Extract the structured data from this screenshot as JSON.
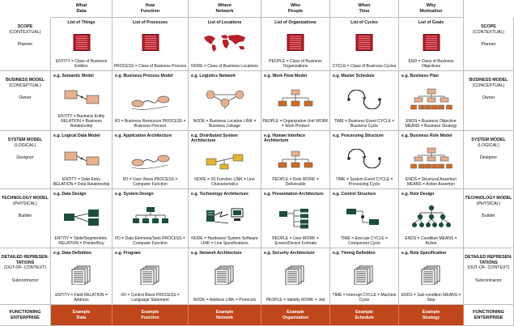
{
  "colors": {
    "accent_bottom": "#c0461b",
    "icon_red": "#b81f2a",
    "icon_green": "#1d4d40",
    "icon_peach": "#e9b08e",
    "icon_orange": "#d06a22",
    "icon_yellow": "#e6b432"
  },
  "columns": [
    {
      "line1": "What",
      "line2": "Data"
    },
    {
      "line1": "How",
      "line2": "Function"
    },
    {
      "line1": "Where",
      "line2": "Network"
    },
    {
      "line1": "Who",
      "line2": "People"
    },
    {
      "line1": "When",
      "line2": "Time"
    },
    {
      "line1": "Why",
      "line2": "Motivation"
    }
  ],
  "rows": [
    {
      "name": "SCOPE",
      "sub": "(CONTEXTUAL)",
      "role": "Planner"
    },
    {
      "name": "BUSINESS MODEL",
      "sub": "(CONCEPTUAL)",
      "role": "Owner"
    },
    {
      "name": "SYSTEM MODEL",
      "sub": "(LOGICAL)",
      "role": "Designer"
    },
    {
      "name": "TECHNOLOGY MODEL",
      "sub": "(PHYSICAL)",
      "role": "Builder"
    },
    {
      "name": "DETAILED REPRESEN- TATIONS",
      "sub": "(OUT-OF- CONTEXT)",
      "role": "Subcontractor"
    }
  ],
  "cells": [
    [
      {
        "title": "List of Things",
        "icon": "book-icon",
        "desc": "ENTITY = Class of Business Entities"
      },
      {
        "title": "List of Processes",
        "icon": "book-icon",
        "desc": "PROCESS = Class of Business Process"
      },
      {
        "title": "List of Locations",
        "icon": "world-map-icon",
        "desc": "NODE = Class of Business Locations"
      },
      {
        "title": "List of Organizations",
        "icon": "book-icon",
        "desc": "PEOPLE = Class of Business Organizations"
      },
      {
        "title": "List of Cycles",
        "icon": "book-icon",
        "desc": "CYCLE = Class of Business Cycles"
      },
      {
        "title": "List of Goals",
        "icon": "book-icon",
        "desc": "END = Class of Business Objectives"
      }
    ],
    [
      {
        "title": "e.g. Semantic Model",
        "icon": "entity-diagram-icon",
        "desc": "ENTITY = Business Entity RELATION = Business Relationship"
      },
      {
        "title": "e.g. Business Process Model",
        "icon": "process-flow-icon",
        "desc": "I/O = Business Resources PROCESS = Business Process"
      },
      {
        "title": "e.g. Logistics Network",
        "icon": "network-nodes-icon",
        "desc": "NODE = Business Location LINK = Business Linkage"
      },
      {
        "title": "e.g. Work Flow Model",
        "icon": "org-chart-icon",
        "desc": "PEOPLE = Organization Unit WORK = Work Product"
      },
      {
        "title": "e.g. Master Schedule",
        "icon": "cycle-icon",
        "desc": "TIME = Business Event CYCLE = Business Cycle"
      },
      {
        "title": "e.g. Business Plan",
        "icon": "goal-tree-icon",
        "desc": "ENDS = Business Objective MEANS = Business Strategy"
      }
    ],
    [
      {
        "title": "e.g. Logical Data Model",
        "icon": "entity-diagram-icon",
        "desc": "ENTITY = Data Entry RELATION = Data Relationship"
      },
      {
        "title": "e.g. Application Architecture",
        "icon": "process-flow-icon",
        "desc": "I/O = User Views PROCESS = Computer Function"
      },
      {
        "title": "e.g. Distributed System Architecture",
        "icon": "system-boxes-icon",
        "desc": "NODE = I/S Function LINK = Line Characteristics"
      },
      {
        "title": "e.g. Human Interface Architecture",
        "icon": "org-chart-icon",
        "desc": "PEOPLE = Role WORK = Deliverable"
      },
      {
        "title": "e.g. Processing Structure",
        "icon": "cycle-icon",
        "desc": "TIME = System Event CYCLE = Processing Cycle"
      },
      {
        "title": "e.g. Business Role Model",
        "icon": "goal-tree-icon",
        "desc": "ENDS = Structural Assertion MEANS = Action Assertion"
      }
    ],
    [
      {
        "title": "e.g. Data Design",
        "icon": "table-design-icon",
        "desc": "ENTITY = Table/Segment/etc. RELATION = Pointer/Key"
      },
      {
        "title": "e.g. System Design",
        "icon": "system-design-icon",
        "desc": "I/O = Data Elements/Sets PROCESS = Computer Function"
      },
      {
        "title": "e.g. Technology Architecture",
        "icon": "hardware-icon",
        "desc": "NODE = Hardware/ System Software LINK = Line Specifications"
      },
      {
        "title": "e.g. Presentation Architecture",
        "icon": "screen-tree-icon",
        "desc": "PEOPLE = User WORK = Screen/Device Formats"
      },
      {
        "title": "e.g. Control Structure",
        "icon": "control-flow-icon",
        "desc": "TIME = Execute CYCLE = Component Cycle"
      },
      {
        "title": "e.g. Role Design",
        "icon": "role-tree-icon",
        "desc": "ENDS = Condition MEANS = Action"
      }
    ],
    [
      {
        "title": "e.g. Data Definition",
        "icon": "document-stack-icon",
        "desc": "ENTITY = Field RELATION = Address"
      },
      {
        "title": "e.g. Program",
        "icon": "document-stack-icon",
        "desc": "I/O = Control Block PROCESS = Language Statement"
      },
      {
        "title": "e.g. Network Architecture",
        "icon": "document-stack-icon",
        "desc": "NODE = Address LINK = Protocols"
      },
      {
        "title": "e.g. Security Architecture",
        "icon": "document-stack-icon",
        "desc": "PEOPLE = Identity WORK = Job"
      },
      {
        "title": "e.g. Timing Definition",
        "icon": "document-stack-icon",
        "desc": "TIME = Interrupt CYCLE = Machine Cycle"
      },
      {
        "title": "e.g. Role Specification",
        "icon": "document-stack-icon",
        "desc": "ENDS = Sub-condition MEANS = Step"
      }
    ]
  ],
  "bottom": {
    "label": "FUNCTIONING ENTERPRISE",
    "cells": [
      {
        "line1": "Example",
        "line2": "Data"
      },
      {
        "line1": "Example",
        "line2": "Function"
      },
      {
        "line1": "Example",
        "line2": "Network"
      },
      {
        "line1": "Example",
        "line2": "Organization"
      },
      {
        "line1": "Example",
        "line2": "Schedule"
      },
      {
        "line1": "Example",
        "line2": "Strategy"
      }
    ]
  }
}
